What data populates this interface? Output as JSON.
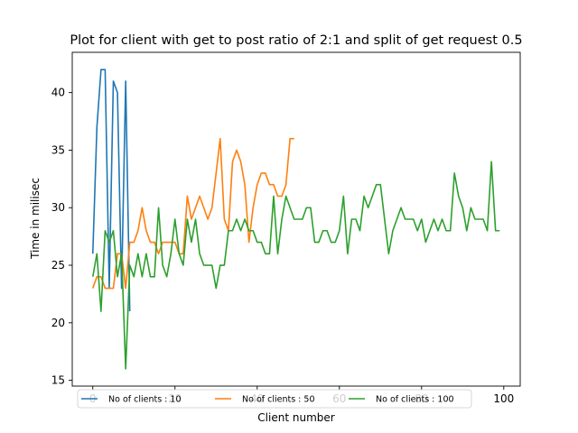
{
  "chart_data": {
    "type": "line",
    "title": "Plot for client with get to post ratio of 2:1 and split of get request 0.5",
    "xlabel": "Client number",
    "ylabel": "Time in milisec",
    "xlim": [
      -5,
      104
    ],
    "ylim": [
      14.5,
      43.5
    ],
    "xticks": [
      0,
      20,
      40,
      60,
      80,
      100
    ],
    "yticks": [
      15,
      20,
      25,
      30,
      35,
      40
    ],
    "grid": false,
    "legend_position": "bottom",
    "series": [
      {
        "name": "No of clients : 10",
        "color": "#1f77b4",
        "values": [
          26,
          37,
          42,
          42,
          23,
          41,
          40,
          23,
          41,
          21
        ]
      },
      {
        "name": "No of clients : 50",
        "color": "#ff7f0e",
        "values": [
          23,
          24,
          24,
          23,
          23,
          23,
          26,
          26,
          23,
          27,
          27,
          28,
          30,
          28,
          27,
          27,
          26,
          27,
          27,
          27,
          27,
          26,
          26,
          31,
          29,
          30,
          31,
          30,
          29,
          30,
          33,
          36,
          29,
          28,
          34,
          35,
          34,
          32,
          27,
          30,
          32,
          33,
          33,
          32,
          32,
          31,
          31,
          32,
          36,
          36
        ]
      },
      {
        "name": "No of clients : 100",
        "color": "#2ca02c",
        "values": [
          24,
          26,
          21,
          28,
          27,
          28,
          24,
          26,
          16,
          25,
          24,
          26,
          24,
          26,
          24,
          24,
          30,
          25,
          24,
          26,
          29,
          26,
          25,
          29,
          27,
          29,
          26,
          25,
          25,
          25,
          23,
          25,
          25,
          28,
          28,
          29,
          28,
          29,
          28,
          28,
          27,
          27,
          26,
          26,
          31,
          26,
          29,
          31,
          30,
          29,
          29,
          29,
          30,
          30,
          27,
          27,
          28,
          28,
          27,
          27,
          28,
          31,
          26,
          29,
          29,
          28,
          31,
          30,
          31,
          32,
          32,
          29,
          26,
          28,
          29,
          30,
          29,
          29,
          29,
          28,
          29,
          27,
          28,
          29,
          28,
          29,
          28,
          28,
          33,
          31,
          30,
          28,
          30,
          29,
          29,
          29,
          28,
          34,
          28,
          28
        ]
      }
    ]
  }
}
